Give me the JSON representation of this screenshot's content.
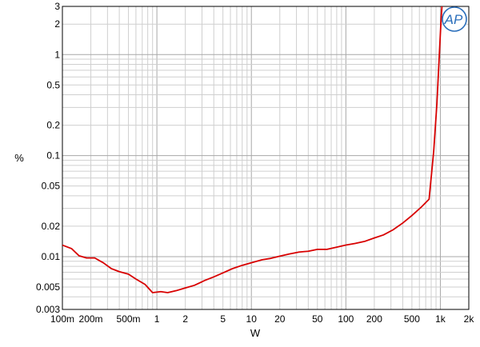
{
  "chart_data": {
    "type": "line",
    "title": "",
    "xlabel": "W",
    "ylabel": "%",
    "x_scale": "log",
    "y_scale": "log",
    "xlim": [
      0.1,
      2000
    ],
    "ylim": [
      0.003,
      3
    ],
    "grid": true,
    "legend": "none",
    "x_ticks": [
      {
        "value": 0.1,
        "label": "100m"
      },
      {
        "value": 0.2,
        "label": "200m"
      },
      {
        "value": 0.5,
        "label": "500m"
      },
      {
        "value": 1,
        "label": "1"
      },
      {
        "value": 2,
        "label": "2"
      },
      {
        "value": 5,
        "label": "5"
      },
      {
        "value": 10,
        "label": "10"
      },
      {
        "value": 20,
        "label": "20"
      },
      {
        "value": 50,
        "label": "50"
      },
      {
        "value": 100,
        "label": "100"
      },
      {
        "value": 200,
        "label": "200"
      },
      {
        "value": 500,
        "label": "500"
      },
      {
        "value": 1000,
        "label": "1k"
      },
      {
        "value": 2000,
        "label": "2k"
      }
    ],
    "y_ticks": [
      {
        "value": 0.003,
        "label": "0.003"
      },
      {
        "value": 0.005,
        "label": "0.005"
      },
      {
        "value": 0.01,
        "label": "0.01"
      },
      {
        "value": 0.02,
        "label": "0.02"
      },
      {
        "value": 0.05,
        "label": "0.05"
      },
      {
        "value": 0.1,
        "label": "0.1"
      },
      {
        "value": 0.2,
        "label": "0.2"
      },
      {
        "value": 0.5,
        "label": "0.5"
      },
      {
        "value": 1,
        "label": "1"
      },
      {
        "value": 2,
        "label": "2"
      },
      {
        "value": 3,
        "label": "3"
      }
    ],
    "series": [
      {
        "color": "#d80000",
        "points": [
          [
            0.1,
            0.013
          ],
          [
            0.125,
            0.012
          ],
          [
            0.15,
            0.0102
          ],
          [
            0.18,
            0.0097
          ],
          [
            0.22,
            0.0097
          ],
          [
            0.27,
            0.0087
          ],
          [
            0.33,
            0.0076
          ],
          [
            0.4,
            0.0071
          ],
          [
            0.5,
            0.0067
          ],
          [
            0.6,
            0.006
          ],
          [
            0.75,
            0.0053
          ],
          [
            0.9,
            0.0044
          ],
          [
            1.1,
            0.0045
          ],
          [
            1.3,
            0.0044
          ],
          [
            1.6,
            0.0046
          ],
          [
            2.0,
            0.0049
          ],
          [
            2.5,
            0.0052
          ],
          [
            3.2,
            0.0058
          ],
          [
            4.0,
            0.0063
          ],
          [
            5.0,
            0.0069
          ],
          [
            6.3,
            0.0076
          ],
          [
            8.0,
            0.0082
          ],
          [
            10,
            0.0087
          ],
          [
            13,
            0.0093
          ],
          [
            16,
            0.0096
          ],
          [
            20,
            0.0101
          ],
          [
            25,
            0.0106
          ],
          [
            32,
            0.0111
          ],
          [
            40,
            0.0113
          ],
          [
            50,
            0.0118
          ],
          [
            63,
            0.0118
          ],
          [
            80,
            0.0124
          ],
          [
            100,
            0.013
          ],
          [
            125,
            0.0135
          ],
          [
            160,
            0.0142
          ],
          [
            200,
            0.0153
          ],
          [
            250,
            0.0164
          ],
          [
            315,
            0.0184
          ],
          [
            400,
            0.0215
          ],
          [
            500,
            0.0255
          ],
          [
            630,
            0.031
          ],
          [
            760,
            0.037
          ],
          [
            850,
            0.11
          ],
          [
            920,
            0.33
          ],
          [
            980,
            1.1
          ],
          [
            1020,
            2.3
          ],
          [
            1040,
            3.0
          ]
        ]
      }
    ]
  },
  "logo": {
    "text": "AP",
    "color": "#2a6ebb"
  }
}
